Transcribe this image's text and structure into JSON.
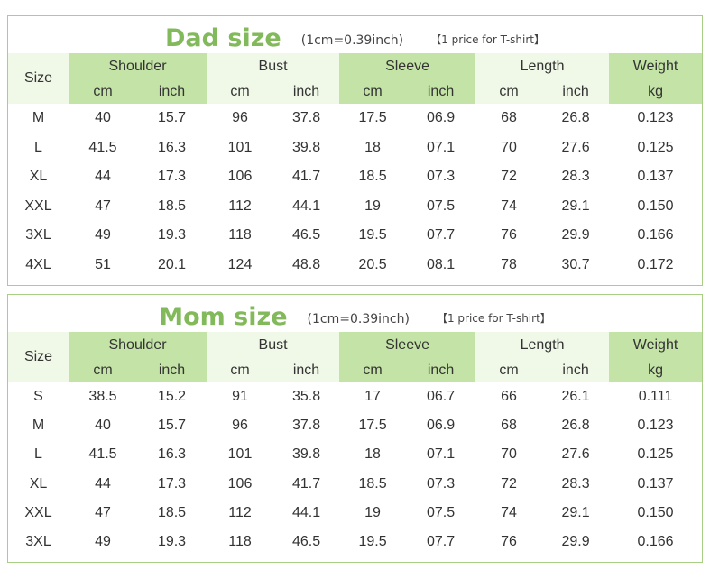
{
  "tables": [
    {
      "title": "Dad size",
      "conversion": "(1cm=0.39inch)",
      "price_note": "【1 price for T-shirt】",
      "headers": {
        "size": "Size",
        "shoulder": "Shoulder",
        "bust": "Bust",
        "sleeve": "Sleeve",
        "length": "Length",
        "weight": "Weight",
        "cm": "cm",
        "inch": "inch",
        "kg": "kg"
      },
      "rows": [
        [
          "M",
          "40",
          "15.7",
          "96",
          "37.8",
          "17.5",
          "06.9",
          "68",
          "26.8",
          "0.123"
        ],
        [
          "L",
          "41.5",
          "16.3",
          "101",
          "39.8",
          "18",
          "07.1",
          "70",
          "27.6",
          "0.125"
        ],
        [
          "XL",
          "44",
          "17.3",
          "106",
          "41.7",
          "18.5",
          "07.3",
          "72",
          "28.3",
          "0.137"
        ],
        [
          "XXL",
          "47",
          "18.5",
          "112",
          "44.1",
          "19",
          "07.5",
          "74",
          "29.1",
          "0.150"
        ],
        [
          "3XL",
          "49",
          "19.3",
          "118",
          "46.5",
          "19.5",
          "07.7",
          "76",
          "29.9",
          "0.166"
        ],
        [
          "4XL",
          "51",
          "20.1",
          "124",
          "48.8",
          "20.5",
          "08.1",
          "78",
          "30.7",
          "0.172"
        ]
      ]
    },
    {
      "title": "Mom size",
      "conversion": "(1cm=0.39inch)",
      "price_note": "【1 price for T-shirt】",
      "headers": {
        "size": "Size",
        "shoulder": "Shoulder",
        "bust": "Bust",
        "sleeve": "Sleeve",
        "length": "Length",
        "weight": "Weight",
        "cm": "cm",
        "inch": "inch",
        "kg": "kg"
      },
      "rows": [
        [
          "S",
          "38.5",
          "15.2",
          "91",
          "35.8",
          "17",
          "06.7",
          "66",
          "26.1",
          "0.111"
        ],
        [
          "M",
          "40",
          "15.7",
          "96",
          "37.8",
          "17.5",
          "06.9",
          "68",
          "26.8",
          "0.123"
        ],
        [
          "L",
          "41.5",
          "16.3",
          "101",
          "39.8",
          "18",
          "07.1",
          "70",
          "27.6",
          "0.125"
        ],
        [
          "XL",
          "44",
          "17.3",
          "106",
          "41.7",
          "18.5",
          "07.3",
          "72",
          "28.3",
          "0.137"
        ],
        [
          "XXL",
          "47",
          "18.5",
          "112",
          "44.1",
          "19",
          "07.5",
          "74",
          "29.1",
          "0.150"
        ],
        [
          "3XL",
          "49",
          "19.3",
          "118",
          "46.5",
          "19.5",
          "07.7",
          "76",
          "29.9",
          "0.166"
        ]
      ]
    }
  ],
  "colors": {
    "title_green": "#82b95a",
    "header_green": "#c4e3a6",
    "header_light": "#f0f8e8",
    "border_green": "#a9cf87"
  }
}
